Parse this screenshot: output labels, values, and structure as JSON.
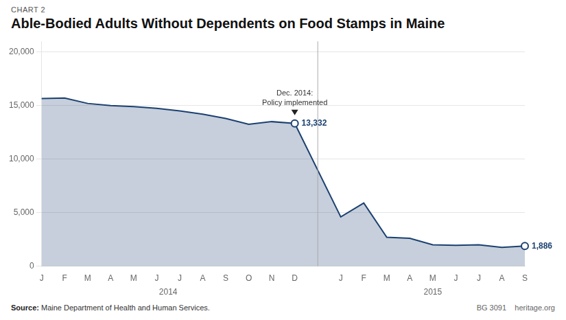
{
  "chart_data": {
    "type": "area",
    "title": "Able-Bodied Adults Without Dependents on Food Stamps in Maine",
    "label_above_title": "CHART 2",
    "source_label": "Source:",
    "source": "Maine Department of Health and Human Services.",
    "credit": "BG 3091    heritage.org",
    "categories": [
      "J",
      "F",
      "M",
      "A",
      "M",
      "J",
      "J",
      "A",
      "S",
      "O",
      "N",
      "D",
      null,
      "J",
      "F",
      "M",
      "A",
      "M",
      "J",
      "J",
      "A",
      "S"
    ],
    "values": [
      15650,
      15700,
      15200,
      15000,
      14900,
      14750,
      14500,
      14200,
      13800,
      13250,
      13500,
      13332,
      null,
      4600,
      5900,
      2700,
      2600,
      2000,
      1950,
      2000,
      1750,
      1886
    ],
    "value_labels": [
      null,
      null,
      null,
      null,
      null,
      null,
      null,
      null,
      null,
      null,
      null,
      "13,332",
      null,
      null,
      null,
      null,
      null,
      null,
      null,
      null,
      null,
      "1,886"
    ],
    "color": "#1b4070",
    "ylim": [
      0,
      21000
    ],
    "yticks": [
      0,
      {
        "value": 5000,
        "label": "5,000"
      },
      {
        "value": 10000,
        "label": "10,000"
      },
      {
        "value": 15000,
        "label": "15,000"
      },
      {
        "value": 20000,
        "label": "20,000"
      }
    ],
    "grid": true,
    "annotations": [
      {
        "index": 11,
        "text": [
          "Dec. 2014:",
          "Policy implemented"
        ]
      }
    ],
    "period_labels": [
      {
        "label": "2014",
        "from": 0,
        "to": 11
      },
      {
        "label": "2015",
        "from": 13,
        "to": 21
      }
    ]
  }
}
